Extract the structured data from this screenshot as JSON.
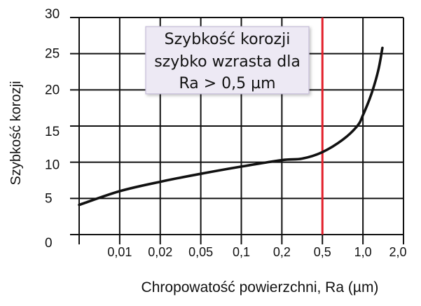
{
  "chart_data": {
    "type": "line",
    "xlabel": "Chropowatość powierzchni, Ra (µm)",
    "ylabel": "Szybkość korozji",
    "xlim": [
      0.005,
      2.0
    ],
    "ylim": [
      0,
      30
    ],
    "xticks": [
      0.01,
      0.02,
      0.05,
      0.1,
      0.2,
      0.5,
      1.0,
      2.0
    ],
    "xtick_labels": [
      "0,01",
      "0,02",
      "0,05",
      "0,1",
      "0,2",
      "0,5",
      "1,0",
      "2,0"
    ],
    "yticks": [
      0,
      5,
      10,
      15,
      20,
      25,
      30
    ],
    "grid": true,
    "series": [
      {
        "color": "#111111",
        "x": [
          0.005,
          0.01,
          0.02,
          0.05,
          0.1,
          0.2,
          0.316,
          0.5,
          0.707,
          0.907,
          1.0,
          1.154,
          1.3,
          1.395
        ],
        "y": [
          4.1,
          6.0,
          7.3,
          8.4,
          9.4,
          10.3,
          10.5,
          11.4,
          13.1,
          15.0,
          16.5,
          19.4,
          22.7,
          25.8
        ]
      }
    ],
    "reference_line": {
      "axis": "x",
      "value": 0.5,
      "color": "#e3202b"
    },
    "annotation": {
      "lines": [
        "Szybkość korozji",
        "szybko wzrasta dla",
        "Ra > 0,5 µm"
      ],
      "background": "#ede9f4",
      "border": "#c4bbd6"
    }
  }
}
